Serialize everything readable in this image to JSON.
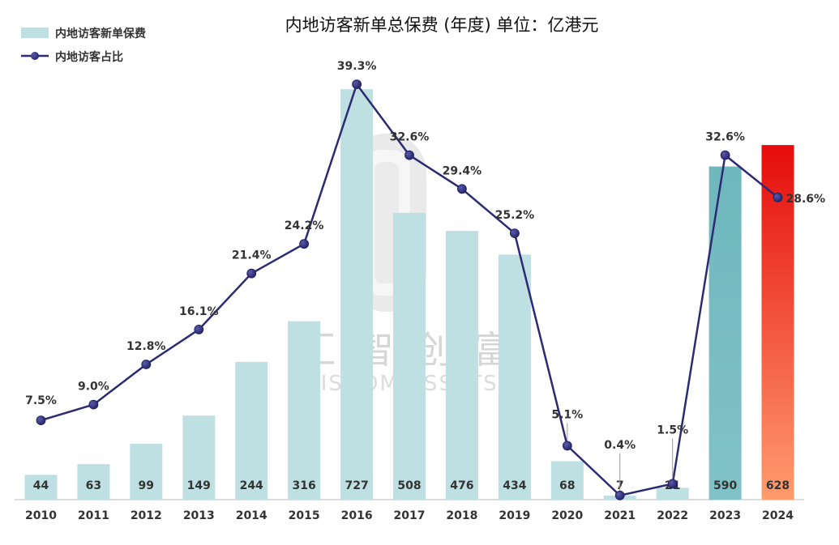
{
  "chart_data": {
    "type": "bar",
    "title": "内地访客新单总保费 (年度)   单位：亿港元",
    "categories": [
      "2010",
      "2011",
      "2012",
      "2013",
      "2014",
      "2015",
      "2016",
      "2017",
      "2018",
      "2019",
      "2020",
      "2021",
      "2022",
      "2023",
      "2024"
    ],
    "series": [
      {
        "name": "内地访客新单保费",
        "kind": "bar",
        "values": [
          44,
          63,
          99,
          149,
          244,
          316,
          727,
          508,
          476,
          434,
          68,
          7,
          21,
          590,
          628
        ],
        "value_labels": [
          "44",
          "63",
          "99",
          "149",
          "244",
          "316",
          "727",
          "508",
          "476",
          "434",
          "68",
          "7",
          "21",
          "590",
          "628"
        ]
      },
      {
        "name": "内地访客占比",
        "kind": "line",
        "axis": "secondary",
        "values": [
          7.5,
          9.0,
          12.8,
          16.1,
          21.4,
          24.2,
          39.3,
          32.6,
          29.4,
          25.2,
          5.1,
          0.4,
          1.5,
          32.6,
          28.6
        ],
        "value_labels": [
          "7.5%",
          "9.0%",
          "12.8%",
          "16.1%",
          "21.4%",
          "24.2%",
          "39.3%",
          "32.6%",
          "29.4%",
          "25.2%",
          "5.1%",
          "0.4%",
          "1.5%",
          "32.6%",
          "28.6%"
        ]
      }
    ],
    "ylim": [
      0,
      730
    ],
    "y2lim": [
      0,
      40
    ],
    "grid": false,
    "legend": "top-left"
  },
  "colors": {
    "bar": "#bfe0e3",
    "bar_2023": "#7bbfc4",
    "bar_2024_top": "#e50c0c",
    "bar_2024_bottom": "#ff9c6e",
    "line": "#2b2a72",
    "axis": "#bbbbbb"
  },
  "watermark": {
    "cn": "汇智创富",
    "en": "WISDOM ASSETS"
  }
}
